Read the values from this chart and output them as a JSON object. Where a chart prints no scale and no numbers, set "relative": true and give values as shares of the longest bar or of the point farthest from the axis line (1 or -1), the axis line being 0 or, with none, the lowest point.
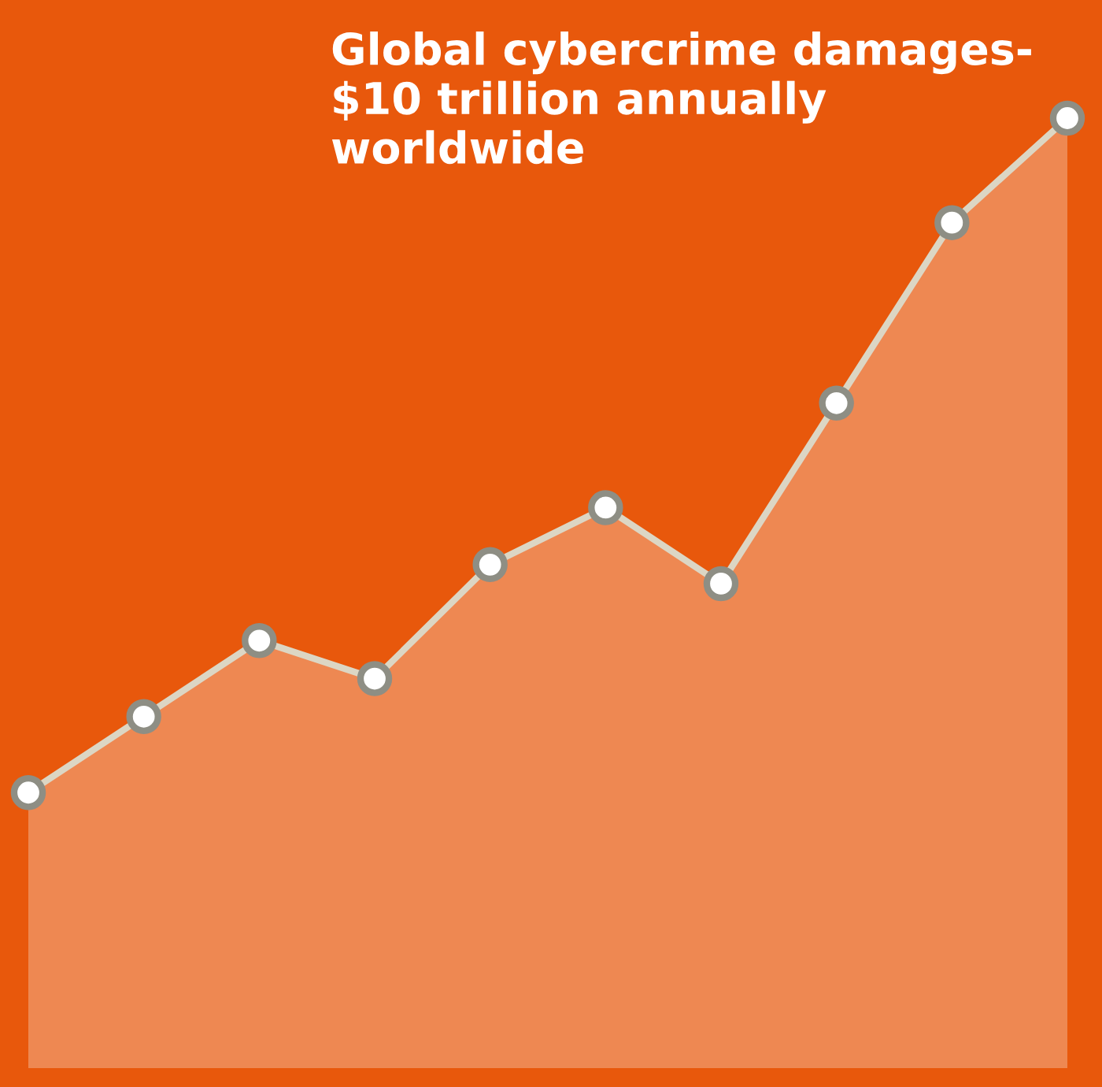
{
  "chart_data": {
    "type": "area",
    "title": "Global cybercrime damages-\n$10 trillion annually\nworldwide",
    "categories": [
      null,
      null,
      null,
      null,
      null,
      null,
      null,
      null,
      null,
      null
    ],
    "series": [
      {
        "color": "#ee8852",
        "values": [
          0.29,
          0.37,
          0.45,
          0.41,
          0.53,
          0.59,
          0.51,
          0.7,
          0.89,
          1.0
        ]
      }
    ],
    "relative": true,
    "marker": "circle",
    "line_style": "solid"
  }
}
